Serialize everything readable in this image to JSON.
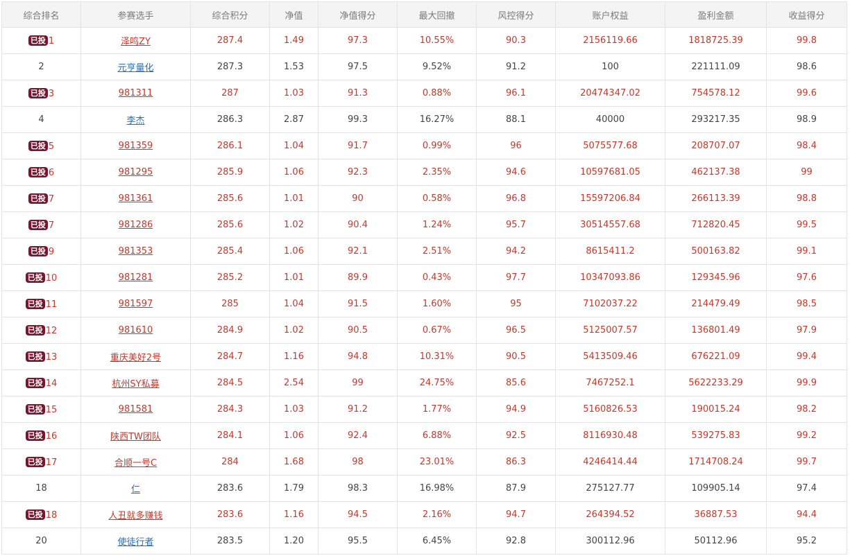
{
  "table": {
    "badge_label": "已投",
    "headers": [
      "综合排名",
      "参赛选手",
      "综合积分",
      "净值",
      "净值得分",
      "最大回撤",
      "风控得分",
      "账户权益",
      "盈利金额",
      "收益得分"
    ],
    "rows": [
      {
        "invested": true,
        "rank": "1",
        "player": "泽鸣ZY",
        "score": "287.4",
        "nav": "1.49",
        "nav_score": "97.3",
        "max_drawdown": "10.55%",
        "risk_score": "90.3",
        "equity": "2156119.66",
        "profit": "1818725.39",
        "return_score": "99.8"
      },
      {
        "invested": false,
        "rank": "2",
        "player": "元亨量化",
        "score": "287.3",
        "nav": "1.53",
        "nav_score": "97.5",
        "max_drawdown": "9.52%",
        "risk_score": "91.2",
        "equity": "100",
        "profit": "221111.09",
        "return_score": "98.6"
      },
      {
        "invested": true,
        "rank": "3",
        "player": "981311",
        "score": "287",
        "nav": "1.03",
        "nav_score": "91.3",
        "max_drawdown": "0.88%",
        "risk_score": "96.1",
        "equity": "20474347.02",
        "profit": "754578.12",
        "return_score": "99.6"
      },
      {
        "invested": false,
        "rank": "4",
        "player": "李杰",
        "score": "286.3",
        "nav": "2.87",
        "nav_score": "99.3",
        "max_drawdown": "16.27%",
        "risk_score": "88.1",
        "equity": "40000",
        "profit": "293217.35",
        "return_score": "98.9"
      },
      {
        "invested": true,
        "rank": "5",
        "player": "981359",
        "score": "286.1",
        "nav": "1.04",
        "nav_score": "91.7",
        "max_drawdown": "0.99%",
        "risk_score": "96",
        "equity": "5075577.68",
        "profit": "208707.07",
        "return_score": "98.4"
      },
      {
        "invested": true,
        "rank": "6",
        "player": "981295",
        "score": "285.9",
        "nav": "1.06",
        "nav_score": "92.3",
        "max_drawdown": "2.35%",
        "risk_score": "94.6",
        "equity": "10597681.05",
        "profit": "462137.38",
        "return_score": "99"
      },
      {
        "invested": true,
        "rank": "7",
        "player": "981361",
        "score": "285.6",
        "nav": "1.01",
        "nav_score": "90",
        "max_drawdown": "0.58%",
        "risk_score": "96.8",
        "equity": "15597206.84",
        "profit": "266113.39",
        "return_score": "98.8"
      },
      {
        "invested": true,
        "rank": "7",
        "player": "981286",
        "score": "285.6",
        "nav": "1.02",
        "nav_score": "90.4",
        "max_drawdown": "1.24%",
        "risk_score": "95.7",
        "equity": "30514557.68",
        "profit": "712820.45",
        "return_score": "99.5"
      },
      {
        "invested": true,
        "rank": "9",
        "player": "981353",
        "score": "285.4",
        "nav": "1.06",
        "nav_score": "92.1",
        "max_drawdown": "2.51%",
        "risk_score": "94.2",
        "equity": "8615411.2",
        "profit": "500163.82",
        "return_score": "99.1"
      },
      {
        "invested": true,
        "rank": "10",
        "player": "981281",
        "score": "285.2",
        "nav": "1.01",
        "nav_score": "89.9",
        "max_drawdown": "0.43%",
        "risk_score": "97.7",
        "equity": "10347093.86",
        "profit": "129345.96",
        "return_score": "97.6"
      },
      {
        "invested": true,
        "rank": "11",
        "player": "981597",
        "score": "285",
        "nav": "1.04",
        "nav_score": "91.5",
        "max_drawdown": "1.60%",
        "risk_score": "95",
        "equity": "7102037.22",
        "profit": "214479.49",
        "return_score": "98.5"
      },
      {
        "invested": true,
        "rank": "12",
        "player": "981610",
        "score": "284.9",
        "nav": "1.02",
        "nav_score": "90.5",
        "max_drawdown": "0.67%",
        "risk_score": "96.5",
        "equity": "5125007.57",
        "profit": "136801.49",
        "return_score": "97.9"
      },
      {
        "invested": true,
        "rank": "13",
        "player": "重庆美好2号",
        "score": "284.7",
        "nav": "1.16",
        "nav_score": "94.8",
        "max_drawdown": "10.31%",
        "risk_score": "90.5",
        "equity": "5413509.46",
        "profit": "676221.09",
        "return_score": "99.4"
      },
      {
        "invested": true,
        "rank": "14",
        "player": "杭州SY私募",
        "score": "284.5",
        "nav": "2.54",
        "nav_score": "99",
        "max_drawdown": "24.75%",
        "risk_score": "85.6",
        "equity": "7467252.1",
        "profit": "5622233.29",
        "return_score": "99.9"
      },
      {
        "invested": true,
        "rank": "15",
        "player": "981581",
        "score": "284.3",
        "nav": "1.03",
        "nav_score": "91.2",
        "max_drawdown": "1.77%",
        "risk_score": "94.9",
        "equity": "5160826.53",
        "profit": "190015.24",
        "return_score": "98.2"
      },
      {
        "invested": true,
        "rank": "16",
        "player": "陕西TW团队",
        "score": "284.1",
        "nav": "1.06",
        "nav_score": "92.4",
        "max_drawdown": "6.88%",
        "risk_score": "92.5",
        "equity": "8116930.48",
        "profit": "539275.83",
        "return_score": "99.2"
      },
      {
        "invested": true,
        "rank": "17",
        "player": "合顺一号C",
        "score": "284",
        "nav": "1.68",
        "nav_score": "98",
        "max_drawdown": "23.01%",
        "risk_score": "86.3",
        "equity": "4246414.44",
        "profit": "1714708.24",
        "return_score": "99.7"
      },
      {
        "invested": false,
        "rank": "18",
        "player": "仁",
        "score": "283.6",
        "nav": "1.79",
        "nav_score": "98.3",
        "max_drawdown": "16.98%",
        "risk_score": "87.9",
        "equity": "275127.77",
        "profit": "109905.14",
        "return_score": "97.4"
      },
      {
        "invested": true,
        "rank": "18",
        "player": "人丑就多赚钱",
        "score": "283.6",
        "nav": "1.16",
        "nav_score": "94.5",
        "max_drawdown": "2.16%",
        "risk_score": "94.7",
        "equity": "264394.52",
        "profit": "36887.53",
        "return_score": "94.4"
      },
      {
        "invested": false,
        "rank": "20",
        "player": "使徒行者",
        "score": "283.5",
        "nav": "1.20",
        "nav_score": "95.5",
        "max_drawdown": "6.45%",
        "risk_score": "92.8",
        "equity": "300112.96",
        "profit": "50112.96",
        "return_score": "95.2"
      }
    ]
  },
  "colors": {
    "invested_text": "#c0392b",
    "normal_text": "#444444",
    "normal_link": "#2a6fb5",
    "badge_bg": "#7a1530",
    "header_bg": "#f4f4f4",
    "border": "#e3e3e3"
  }
}
